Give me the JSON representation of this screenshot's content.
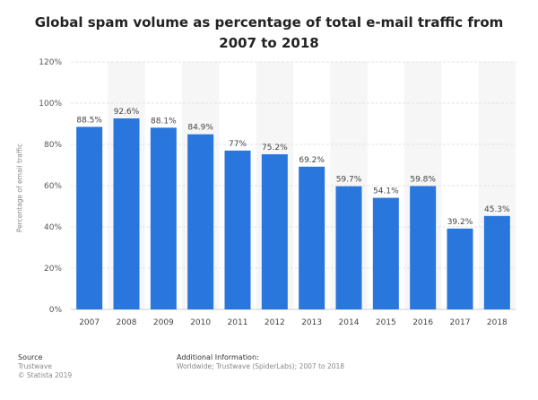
{
  "chart_data": {
    "type": "bar",
    "title": "Global spam volume as percentage of total e-mail traffic from 2007 to 2018",
    "xlabel": "",
    "ylabel": "Percentage of email traffic",
    "categories": [
      "2007",
      "2008",
      "2009",
      "2010",
      "2011",
      "2012",
      "2013",
      "2014",
      "2015",
      "2016",
      "2017",
      "2018"
    ],
    "values": [
      88.5,
      92.6,
      88.1,
      84.9,
      77,
      75.2,
      69.2,
      59.7,
      54.1,
      59.8,
      39.2,
      45.3
    ],
    "data_labels": [
      "88.5%",
      "92.6%",
      "88.1%",
      "84.9%",
      "77%",
      "75.2%",
      "69.2%",
      "59.7%",
      "54.1%",
      "59.8%",
      "39.2%",
      "45.3%"
    ],
    "ylim": [
      0,
      120
    ],
    "yticks": [
      0,
      20,
      40,
      60,
      80,
      100,
      120
    ],
    "ytick_labels": [
      "0%",
      "20%",
      "40%",
      "60%",
      "80%",
      "100%",
      "120%"
    ],
    "grid": true,
    "bar_color": "#2976dd",
    "band_color": "#f6f6f6"
  },
  "footer": {
    "source_heading": "Source",
    "source_name": "Trustwave",
    "copyright": "© Statista 2019",
    "info_heading": "Additional Information:",
    "info_text": "Worldwide; Trustwave (SpiderLabs); 2007 to 2018"
  }
}
